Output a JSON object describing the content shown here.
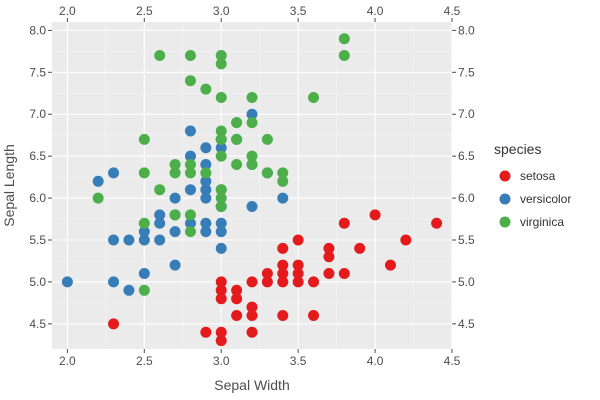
{
  "chart_data": {
    "type": "scatter",
    "xlabel": "Sepal Width",
    "ylabel": "Sepal Length",
    "xlim": [
      1.9,
      4.5
    ],
    "ylim": [
      4.2,
      8.1
    ],
    "x_ticks": [
      "2.0",
      "2.5",
      "3.0",
      "3.5",
      "4.0",
      "4.5"
    ],
    "y_ticks": [
      "4.5",
      "5.0",
      "5.5",
      "6.0",
      "6.5",
      "7.0",
      "7.5",
      "8.0"
    ],
    "grid": true,
    "legend": {
      "title": "species",
      "position": "right"
    },
    "series": [
      {
        "name": "setosa",
        "color": "#e41a1c",
        "points": [
          [
            2.3,
            4.5
          ],
          [
            2.9,
            4.4
          ],
          [
            3.0,
            4.4
          ],
          [
            3.0,
            4.3
          ],
          [
            3.1,
            4.6
          ],
          [
            3.2,
            4.4
          ],
          [
            3.2,
            4.6
          ],
          [
            3.1,
            4.8
          ],
          [
            3.2,
            4.7
          ],
          [
            3.4,
            4.6
          ],
          [
            3.6,
            4.6
          ],
          [
            3.0,
            4.8
          ],
          [
            3.0,
            4.9
          ],
          [
            3.0,
            5.0
          ],
          [
            3.1,
            4.9
          ],
          [
            3.2,
            5.0
          ],
          [
            3.3,
            5.0
          ],
          [
            3.3,
            5.1
          ],
          [
            3.4,
            5.0
          ],
          [
            3.4,
            5.1
          ],
          [
            3.4,
            5.2
          ],
          [
            3.4,
            5.4
          ],
          [
            3.5,
            5.0
          ],
          [
            3.5,
            5.1
          ],
          [
            3.5,
            5.2
          ],
          [
            3.5,
            5.5
          ],
          [
            3.6,
            5.0
          ],
          [
            3.7,
            5.1
          ],
          [
            3.7,
            5.3
          ],
          [
            3.7,
            5.4
          ],
          [
            3.8,
            5.1
          ],
          [
            3.9,
            5.4
          ],
          [
            3.8,
            5.7
          ],
          [
            4.0,
            5.8
          ],
          [
            4.1,
            5.2
          ],
          [
            4.2,
            5.5
          ],
          [
            4.4,
            5.7
          ]
        ]
      },
      {
        "name": "versicolor",
        "color": "#377eb8",
        "points": [
          [
            2.0,
            5.0
          ],
          [
            2.2,
            6.2
          ],
          [
            2.3,
            6.3
          ],
          [
            2.3,
            5.5
          ],
          [
            2.3,
            5.0
          ],
          [
            2.4,
            5.5
          ],
          [
            2.4,
            4.9
          ],
          [
            2.5,
            5.6
          ],
          [
            2.5,
            5.5
          ],
          [
            2.5,
            5.1
          ],
          [
            2.6,
            5.8
          ],
          [
            2.6,
            5.7
          ],
          [
            2.6,
            5.5
          ],
          [
            2.7,
            6.0
          ],
          [
            2.7,
            5.8
          ],
          [
            2.7,
            5.6
          ],
          [
            2.7,
            5.2
          ],
          [
            2.8,
            6.8
          ],
          [
            2.8,
            6.5
          ],
          [
            2.8,
            6.1
          ],
          [
            2.8,
            5.7
          ],
          [
            2.9,
            6.6
          ],
          [
            2.9,
            6.4
          ],
          [
            2.9,
            6.2
          ],
          [
            2.9,
            6.1
          ],
          [
            2.9,
            6.0
          ],
          [
            2.9,
            5.7
          ],
          [
            2.9,
            5.6
          ],
          [
            3.0,
            6.7
          ],
          [
            3.0,
            6.6
          ],
          [
            3.0,
            6.1
          ],
          [
            3.0,
            5.9
          ],
          [
            3.0,
            5.7
          ],
          [
            3.0,
            5.6
          ],
          [
            3.0,
            5.4
          ],
          [
            3.1,
            6.9
          ],
          [
            3.1,
            6.7
          ],
          [
            3.2,
            7.0
          ],
          [
            3.2,
            6.4
          ],
          [
            3.2,
            5.9
          ],
          [
            3.3,
            6.3
          ],
          [
            3.4,
            6.0
          ]
        ]
      },
      {
        "name": "virginica",
        "color": "#4daf4a",
        "points": [
          [
            2.2,
            6.0
          ],
          [
            2.5,
            6.7
          ],
          [
            2.5,
            6.3
          ],
          [
            2.5,
            5.7
          ],
          [
            2.5,
            4.9
          ],
          [
            2.6,
            7.7
          ],
          [
            2.6,
            6.1
          ],
          [
            2.7,
            6.4
          ],
          [
            2.7,
            6.3
          ],
          [
            2.7,
            5.8
          ],
          [
            2.8,
            7.7
          ],
          [
            2.8,
            7.4
          ],
          [
            2.8,
            6.4
          ],
          [
            2.8,
            6.3
          ],
          [
            2.8,
            5.8
          ],
          [
            2.8,
            5.6
          ],
          [
            2.9,
            7.3
          ],
          [
            2.9,
            6.3
          ],
          [
            3.0,
            7.7
          ],
          [
            3.0,
            7.6
          ],
          [
            3.0,
            7.2
          ],
          [
            3.0,
            6.8
          ],
          [
            3.0,
            6.7
          ],
          [
            3.0,
            6.5
          ],
          [
            3.0,
            6.1
          ],
          [
            3.0,
            6.0
          ],
          [
            3.0,
            5.9
          ],
          [
            3.1,
            6.9
          ],
          [
            3.1,
            6.7
          ],
          [
            3.1,
            6.4
          ],
          [
            3.2,
            7.2
          ],
          [
            3.2,
            6.9
          ],
          [
            3.2,
            6.5
          ],
          [
            3.2,
            6.4
          ],
          [
            3.3,
            6.7
          ],
          [
            3.3,
            6.3
          ],
          [
            3.4,
            6.3
          ],
          [
            3.4,
            6.2
          ],
          [
            3.6,
            7.2
          ],
          [
            3.8,
            7.9
          ],
          [
            3.8,
            7.7
          ]
        ]
      }
    ]
  }
}
